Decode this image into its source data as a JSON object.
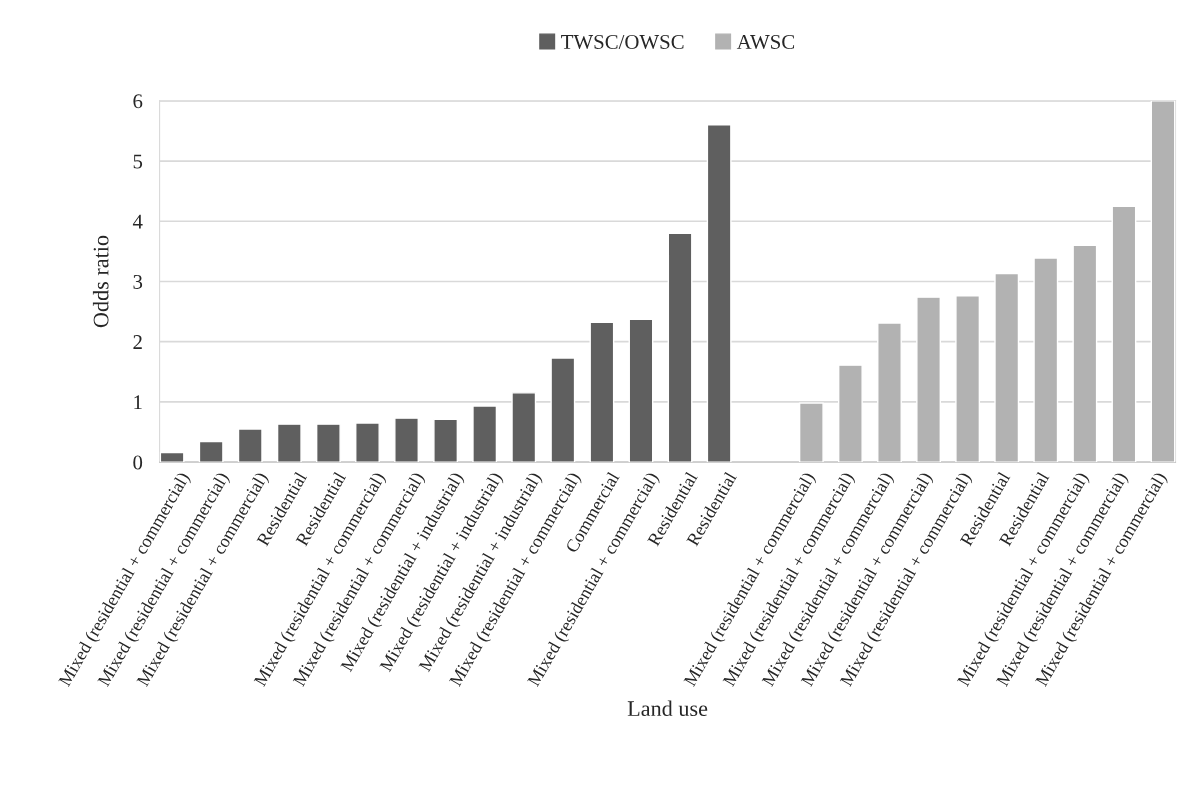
{
  "chart_data": {
    "type": "bar",
    "xlabel": "Land use",
    "ylabel": "Odds ratio",
    "categories": [
      "Mixed (residential + commercial)",
      "Mixed (residential + commercial)",
      "Mixed (residential + commercial)",
      "Residential",
      "Residential",
      "Mixed (residential + commercial)",
      "Mixed (residential + commercial)",
      "Mixed (residential + industrial)",
      "Mixed (residential + industrial)",
      "Mixed (residential + industrial)",
      "Mixed (residential + commercial)",
      "Commercial",
      "Mixed (residential + commercial)",
      "Residential",
      "Residential",
      null,
      "Mixed (residential + commercial)",
      "Mixed (residential + commercial)",
      "Mixed (residential + commercial)",
      "Mixed (residential + commercial)",
      "Mixed (residential + commercial)",
      "Residential",
      "Residential",
      "Mixed (residential + commercial)",
      "Mixed (residential + commercial)",
      "Mixed (residential + commercial)"
    ],
    "series": [
      {
        "name": "TWSC/OWSC",
        "color": "#5f5f5f",
        "values": [
          0.16,
          0.34,
          0.55,
          0.63,
          0.63,
          0.65,
          0.73,
          0.71,
          0.93,
          1.15,
          1.73,
          2.32,
          2.37,
          3.8,
          5.6,
          null,
          null,
          null,
          null,
          null,
          null,
          null,
          null,
          null,
          null,
          null
        ]
      },
      {
        "name": "AWSC",
        "color": "#b2b2b2",
        "values": [
          null,
          null,
          null,
          null,
          null,
          null,
          null,
          null,
          null,
          null,
          null,
          null,
          null,
          null,
          null,
          null,
          0.98,
          1.61,
          2.31,
          2.74,
          2.76,
          3.13,
          3.39,
          3.6,
          4.25,
          6.0
        ]
      }
    ],
    "ylim": [
      0,
      6
    ],
    "yticks": [
      0,
      1,
      2,
      3,
      4,
      5,
      6
    ],
    "grid": "y",
    "legend": "top"
  }
}
